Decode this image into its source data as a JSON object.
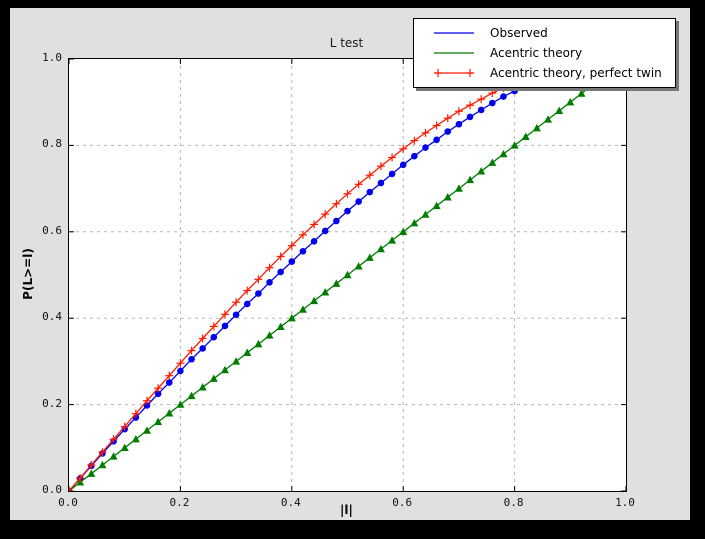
{
  "colors": {
    "window_bg": "#000000",
    "figure_bg": "#e0e0de",
    "plot_bg": "#ffffff",
    "axis": "#000000",
    "grid": "#b5b5b5",
    "legend_shadow": "#777777"
  },
  "chart_data": {
    "type": "line",
    "title": "L test",
    "xlabel": "|l|",
    "ylabel": "P(L>=l)",
    "xlim": [
      0.0,
      1.0
    ],
    "ylim": [
      0.0,
      1.0
    ],
    "grid": "dashed gridlines at interior major ticks",
    "xticks": {
      "values": [
        0.0,
        0.2,
        0.4,
        0.6,
        0.8,
        1.0
      ],
      "labels": [
        "0.0",
        "0.2",
        "0.4",
        "0.6",
        "0.8",
        "1.0"
      ]
    },
    "yticks": {
      "values": [
        0.0,
        0.2,
        0.4,
        0.6,
        0.8,
        1.0
      ],
      "labels": [
        "0.0",
        "0.2",
        "0.4",
        "0.6",
        "0.8",
        "1.0"
      ]
    },
    "legend": {
      "position": "upper right, overlapping top edge of axes",
      "entries": [
        "Observed",
        "Acentric theory",
        "Acentric theory, perfect twin"
      ]
    },
    "series": [
      {
        "name": "Observed",
        "color": "#0000ee",
        "marker": "circle",
        "line": "solid",
        "x": [
          0,
          0.02,
          0.04,
          0.06,
          0.08,
          0.1,
          0.12,
          0.14,
          0.16,
          0.18,
          0.2,
          0.22,
          0.24,
          0.26,
          0.28,
          0.3,
          0.32,
          0.34,
          0.36,
          0.38,
          0.4,
          0.42,
          0.44,
          0.46,
          0.48,
          0.5,
          0.52,
          0.54,
          0.56,
          0.58,
          0.6,
          0.62,
          0.64,
          0.66,
          0.68,
          0.7,
          0.72,
          0.74,
          0.76,
          0.78,
          0.8,
          0.82,
          0.84,
          0.86
        ],
        "y": [
          0,
          0.029,
          0.058,
          0.087,
          0.115,
          0.143,
          0.17,
          0.198,
          0.225,
          0.251,
          0.278,
          0.305,
          0.33,
          0.356,
          0.382,
          0.408,
          0.433,
          0.457,
          0.483,
          0.507,
          0.531,
          0.555,
          0.578,
          0.602,
          0.625,
          0.648,
          0.67,
          0.692,
          0.713,
          0.734,
          0.755,
          0.775,
          0.795,
          0.813,
          0.832,
          0.849,
          0.866,
          0.882,
          0.898,
          0.913,
          0.926,
          0.938,
          0.951,
          0.961
        ]
      },
      {
        "name": "Acentric theory",
        "color": "#007d00",
        "marker": "triangle-up",
        "line": "solid",
        "x": [
          0,
          0.02,
          0.04,
          0.06,
          0.08,
          0.1,
          0.12,
          0.14,
          0.16,
          0.18,
          0.2,
          0.22,
          0.24,
          0.26,
          0.28,
          0.3,
          0.32,
          0.34,
          0.36,
          0.38,
          0.4,
          0.42,
          0.44,
          0.46,
          0.48,
          0.5,
          0.52,
          0.54,
          0.56,
          0.58,
          0.6,
          0.62,
          0.64,
          0.66,
          0.68,
          0.7,
          0.72,
          0.74,
          0.76,
          0.78,
          0.8,
          0.82,
          0.84,
          0.86,
          0.88,
          0.9,
          0.92,
          0.94,
          0.96
        ],
        "y": [
          0,
          0.02,
          0.04,
          0.06,
          0.08,
          0.1,
          0.12,
          0.14,
          0.16,
          0.18,
          0.2,
          0.22,
          0.24,
          0.26,
          0.28,
          0.3,
          0.32,
          0.34,
          0.36,
          0.38,
          0.4,
          0.42,
          0.44,
          0.46,
          0.48,
          0.5,
          0.52,
          0.54,
          0.56,
          0.58,
          0.6,
          0.62,
          0.64,
          0.66,
          0.68,
          0.7,
          0.72,
          0.74,
          0.76,
          0.78,
          0.8,
          0.82,
          0.84,
          0.86,
          0.88,
          0.9,
          0.92,
          0.94,
          0.96
        ]
      },
      {
        "name": "Acentric theory, perfect twin",
        "color": "#ff1a00",
        "marker": "plus",
        "line": "solid",
        "x": [
          0,
          0.02,
          0.04,
          0.06,
          0.08,
          0.1,
          0.12,
          0.14,
          0.16,
          0.18,
          0.2,
          0.22,
          0.24,
          0.26,
          0.28,
          0.3,
          0.32,
          0.34,
          0.36,
          0.38,
          0.4,
          0.42,
          0.44,
          0.46,
          0.48,
          0.5,
          0.52,
          0.54,
          0.56,
          0.58,
          0.6,
          0.62,
          0.64,
          0.66,
          0.68,
          0.7,
          0.72,
          0.74,
          0.76,
          0.78,
          0.8,
          0.82,
          0.84,
          0.86
        ],
        "y": [
          0,
          0.03,
          0.06,
          0.09,
          0.12,
          0.149,
          0.179,
          0.209,
          0.238,
          0.267,
          0.296,
          0.325,
          0.353,
          0.381,
          0.409,
          0.437,
          0.464,
          0.49,
          0.517,
          0.543,
          0.568,
          0.593,
          0.617,
          0.641,
          0.665,
          0.688,
          0.71,
          0.731,
          0.752,
          0.772,
          0.792,
          0.811,
          0.829,
          0.846,
          0.863,
          0.879,
          0.893,
          0.907,
          0.921,
          0.933,
          0.944,
          0.954,
          0.964,
          0.972
        ]
      }
    ]
  }
}
